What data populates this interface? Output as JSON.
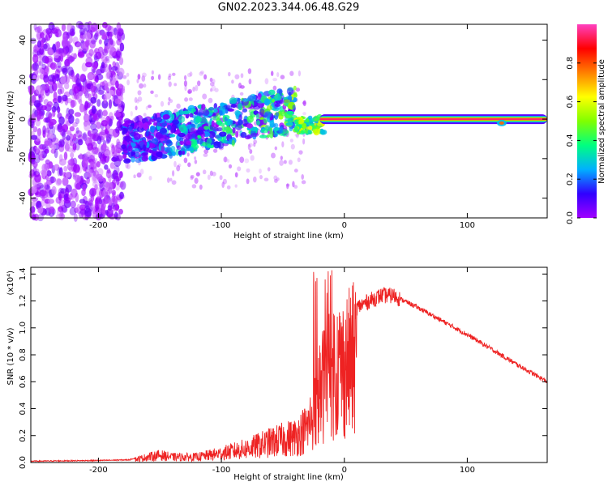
{
  "title": "GN02.2023.344.06.48.G29",
  "chart_data": [
    {
      "type": "heatmap",
      "name": "spectrogram",
      "xlabel": "Height of straight line (km)",
      "ylabel": "Frequency (Hz)",
      "xlim": [
        -255,
        165
      ],
      "ylim": [
        -50,
        48
      ],
      "xticks": [
        -200,
        -100,
        0,
        100
      ],
      "xtick_labels": [
        "-200",
        "-100",
        "0",
        "100"
      ],
      "yticks": [
        -40,
        -20,
        0,
        20,
        40
      ],
      "ytick_labels": [
        "-40",
        "-20",
        "0",
        "20",
        "40"
      ],
      "colorbar": {
        "label": "Normalized spectral amplitude",
        "range": [
          0.0,
          1.0
        ],
        "ticks": [
          0.0,
          0.2,
          0.4,
          0.6,
          0.8
        ],
        "tick_labels": [
          "0.0",
          "0.2",
          "0.4",
          "0.6",
          "0.8"
        ],
        "colormap": [
          "#ffffff",
          "#a000ff",
          "#3000ff",
          "#00b0ff",
          "#00ff80",
          "#80ff00",
          "#ffff00",
          "#ff8000",
          "#ff0000",
          "#ff40c0"
        ]
      },
      "features": {
        "noise_region_x": [
          -255,
          -180
        ],
        "scatter_region_x": [
          -180,
          -30
        ],
        "ridge_start": {
          "x": -180,
          "y": -12
        },
        "ridge_end": {
          "x": -40,
          "y": 5
        },
        "steady_line": {
          "x_start": -20,
          "x_end": 165,
          "y": 0,
          "peak_amplitude": 1.0
        },
        "dip": {
          "x": 128,
          "y": -2
        }
      }
    },
    {
      "type": "line",
      "name": "snr",
      "xlabel": "Height of straight line (km)",
      "ylabel": "SNR (10 * v/v)",
      "scale_label": "(x10⁴)",
      "xlim": [
        -255,
        165
      ],
      "ylim": [
        0.0,
        1.45
      ],
      "xticks": [
        -200,
        -100,
        0,
        100
      ],
      "xtick_labels": [
        "-200",
        "-100",
        "0",
        "100"
      ],
      "yticks": [
        0.0,
        0.2,
        0.4,
        0.6,
        0.8,
        1.0,
        1.2,
        1.4
      ],
      "ytick_labels": [
        "0.0",
        "0.2",
        "0.4",
        "0.6",
        "0.8",
        "1.0",
        "1.2",
        "1.4"
      ],
      "color": "#ee2222",
      "envelope": {
        "x": [
          -255,
          -200,
          -175,
          -160,
          -150,
          -140,
          -120,
          -100,
          -80,
          -60,
          -40,
          -30,
          -25,
          -20,
          -15,
          -10,
          -5,
          0,
          10,
          20,
          30,
          40,
          60,
          80,
          100,
          120,
          140,
          165
        ],
        "y": [
          0.01,
          0.015,
          0.02,
          0.06,
          0.08,
          0.06,
          0.06,
          0.1,
          0.15,
          0.22,
          0.28,
          0.38,
          0.55,
          0.75,
          0.95,
          1.05,
          1.05,
          1.05,
          1.15,
          1.2,
          1.24,
          1.24,
          1.15,
          1.05,
          0.95,
          0.84,
          0.73,
          0.6
        ]
      }
    }
  ]
}
